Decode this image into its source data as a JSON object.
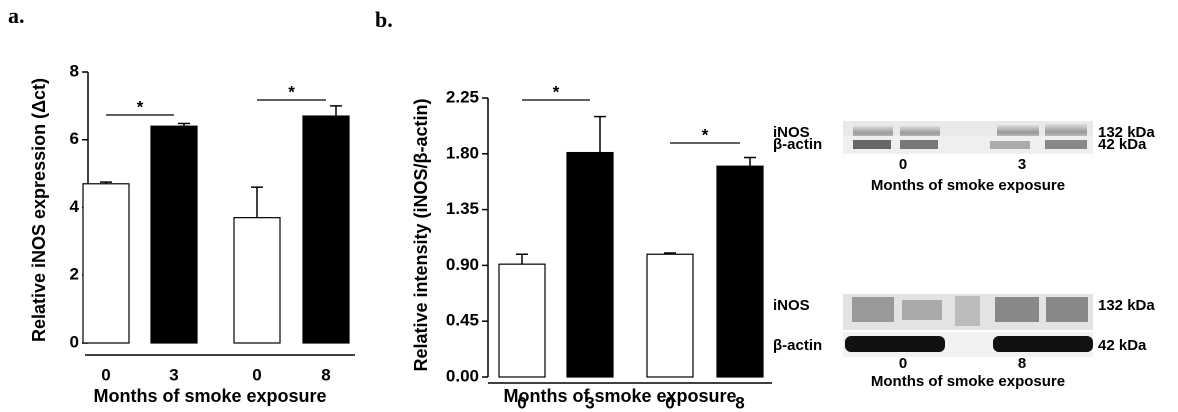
{
  "panel_labels": [
    "a.",
    "b."
  ],
  "chart_data": [
    {
      "type": "bar",
      "categories": [
        "0",
        "3",
        "0",
        "8"
      ],
      "values": [
        4.7,
        6.4,
        3.7,
        6.7
      ],
      "errors": [
        0.05,
        0.08,
        0.9,
        0.3
      ],
      "colors": [
        "#ffffff",
        "#000000",
        "#ffffff",
        "#000000"
      ],
      "ylim": [
        0,
        8
      ],
      "yticks": [
        0,
        2,
        4,
        6,
        8
      ],
      "y_label": "Relative iNOS expression (Δct)",
      "x_label": "Months of smoke exposure",
      "significance": [
        "*",
        "*"
      ]
    },
    {
      "type": "bar",
      "categories": [
        "0",
        "3",
        "0",
        "8"
      ],
      "values": [
        0.91,
        1.81,
        0.99,
        1.7
      ],
      "errors": [
        0.08,
        0.29,
        0.01,
        0.07
      ],
      "colors": [
        "#ffffff",
        "#000000",
        "#ffffff",
        "#000000"
      ],
      "ylim": [
        0,
        2.25
      ],
      "yticks": [
        {
          "value": 0,
          "label": "0.00"
        },
        0.45,
        {
          "value": 0.9,
          "label": "0.90"
        },
        1.35,
        {
          "value": 1.8,
          "label": "1.80"
        },
        2.25
      ],
      "y_label": "Relative intensity (iNOS/β-actin)",
      "x_label": "Months of smoke exposure",
      "significance": [
        "*",
        "*"
      ]
    }
  ],
  "blots": [
    {
      "rows": [
        {
          "protein": "iNOS",
          "size": "132 kDa"
        },
        {
          "protein": "β-actin",
          "size": "42 kDa"
        }
      ],
      "lanes": [
        "0",
        "3"
      ],
      "x_label": "Months of smoke exposure"
    },
    {
      "rows": [
        {
          "protein": "iNOS",
          "size": "132 kDa"
        },
        {
          "protein": "β-actin",
          "size": "42 kDa"
        }
      ],
      "lanes": [
        "0",
        "8"
      ],
      "x_label": "Months of smoke exposure"
    }
  ]
}
